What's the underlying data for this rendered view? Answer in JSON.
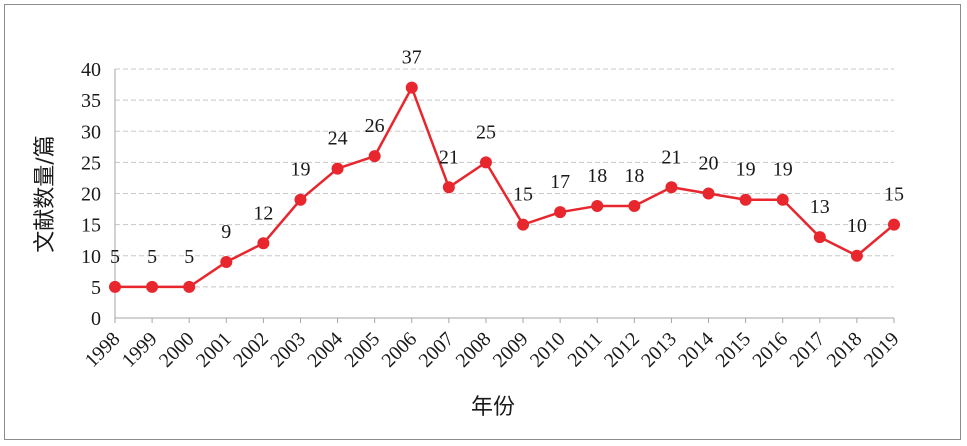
{
  "chart_data": {
    "type": "line",
    "title": "",
    "xlabel": "年份",
    "ylabel": "文献数量/篇",
    "ylim": [
      0,
      40
    ],
    "yticks": [
      0,
      5,
      10,
      15,
      20,
      25,
      30,
      35,
      40
    ],
    "grid": true,
    "legend": "none",
    "categories": [
      "1998",
      "1999",
      "2000",
      "2001",
      "2002",
      "2003",
      "2004",
      "2005",
      "2006",
      "2007",
      "2008",
      "2009",
      "2010",
      "2011",
      "2012",
      "2013",
      "2014",
      "2015",
      "2016",
      "2017",
      "2018",
      "2019"
    ],
    "values": [
      5,
      5,
      5,
      9,
      12,
      19,
      24,
      26,
      37,
      21,
      25,
      15,
      17,
      18,
      18,
      21,
      20,
      19,
      19,
      13,
      10,
      15
    ],
    "series_color": "#e8262d"
  }
}
